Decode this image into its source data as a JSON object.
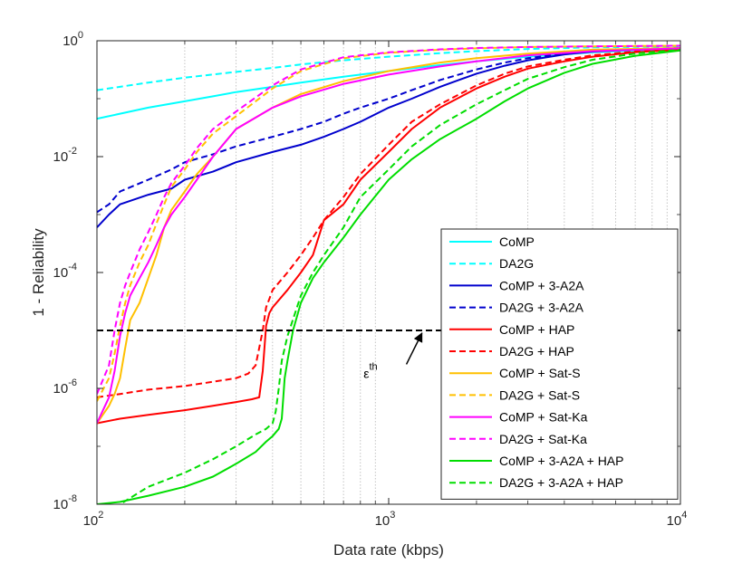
{
  "chart_data": {
    "type": "line",
    "title": "",
    "xlabel": "Data rate (kbps)",
    "ylabel": "1 - Reliability",
    "x_scale": "log",
    "y_scale": "log",
    "xlim": [
      100,
      10000
    ],
    "ylim": [
      1e-08,
      1
    ],
    "grid": "x-minor-dotted",
    "legend_position": "right-center",
    "x_ticks": [
      {
        "value": 100,
        "base": "10",
        "exp": "2"
      },
      {
        "value": 1000,
        "base": "10",
        "exp": "3"
      },
      {
        "value": 10000,
        "base": "10",
        "exp": "4"
      }
    ],
    "y_ticks": [
      {
        "value": 1e-08,
        "base": "10",
        "exp": "-8"
      },
      {
        "value": 1e-06,
        "base": "10",
        "exp": "-6"
      },
      {
        "value": 0.0001,
        "base": "10",
        "exp": "-4"
      },
      {
        "value": 0.01,
        "base": "10",
        "exp": "-2"
      },
      {
        "value": 1,
        "base": "10",
        "exp": "0"
      }
    ],
    "annotation": {
      "threshold_value": 1e-05,
      "threshold_color": "#000000",
      "label_base": "ε",
      "label_sup": "th",
      "label_at": [
        820,
        2.5e-06
      ],
      "arrow_from": [
        1150,
        2.6e-06
      ],
      "arrow_to": [
        1300,
        1e-05
      ]
    },
    "series": [
      {
        "name": "CoMP",
        "color": "#00FFFF",
        "dash": "solid",
        "x": [
          100,
          120,
          150,
          200,
          250,
          300,
          400,
          500,
          700,
          1000,
          1500,
          2000,
          3000,
          5000,
          7000,
          10000
        ],
        "y": [
          0.045,
          0.055,
          0.07,
          0.09,
          0.11,
          0.13,
          0.16,
          0.19,
          0.24,
          0.3,
          0.38,
          0.44,
          0.53,
          0.63,
          0.68,
          0.72
        ]
      },
      {
        "name": "DA2G",
        "color": "#00FFFF",
        "dash": "dashed",
        "x": [
          100,
          120,
          150,
          200,
          300,
          400,
          500,
          700,
          1000,
          1500,
          2000,
          3000,
          5000,
          10000
        ],
        "y": [
          0.14,
          0.16,
          0.19,
          0.23,
          0.29,
          0.34,
          0.39,
          0.46,
          0.53,
          0.61,
          0.66,
          0.72,
          0.77,
          0.8
        ]
      },
      {
        "name": "CoMP + 3-A2A",
        "color": "#0000CD",
        "dash": "solid",
        "x": [
          100,
          110,
          120,
          150,
          180,
          200,
          250,
          300,
          400,
          500,
          600,
          700,
          800,
          1000,
          1200,
          1500,
          2000,
          2500,
          3000,
          4000,
          5000,
          7000,
          10000
        ],
        "y": [
          0.0006,
          0.001,
          0.0015,
          0.0022,
          0.0028,
          0.004,
          0.0055,
          0.008,
          0.012,
          0.016,
          0.022,
          0.03,
          0.04,
          0.07,
          0.1,
          0.16,
          0.27,
          0.37,
          0.46,
          0.58,
          0.65,
          0.7,
          0.74
        ]
      },
      {
        "name": "DA2G + 3-A2A",
        "color": "#0000CD",
        "dash": "dashed",
        "x": [
          100,
          110,
          120,
          150,
          180,
          200,
          250,
          300,
          400,
          500,
          600,
          700,
          800,
          1000,
          1200,
          1500,
          2000,
          2500,
          3000,
          4000,
          5000,
          7000,
          10000
        ],
        "y": [
          0.0011,
          0.0015,
          0.0025,
          0.004,
          0.006,
          0.008,
          0.011,
          0.015,
          0.022,
          0.03,
          0.04,
          0.055,
          0.07,
          0.1,
          0.14,
          0.21,
          0.32,
          0.42,
          0.5,
          0.6,
          0.66,
          0.71,
          0.75
        ]
      },
      {
        "name": "CoMP + HAP",
        "color": "#FF0000",
        "dash": "solid",
        "x": [
          100,
          120,
          150,
          200,
          250,
          300,
          340,
          360,
          370,
          380,
          390,
          400,
          450,
          500,
          550,
          600,
          700,
          800,
          1000,
          1200,
          1500,
          2000,
          2500,
          3000,
          4000,
          5000,
          7000,
          10000
        ],
        "y": [
          2.5e-07,
          3e-07,
          3.5e-07,
          4.2e-07,
          5e-07,
          5.8e-07,
          6.5e-07,
          7e-07,
          2e-06,
          1.2e-05,
          2e-05,
          2.5e-05,
          5e-05,
          0.0001,
          0.0002,
          0.0008,
          0.0015,
          0.004,
          0.012,
          0.03,
          0.07,
          0.15,
          0.24,
          0.33,
          0.44,
          0.53,
          0.63,
          0.7
        ]
      },
      {
        "name": "DA2G + HAP",
        "color": "#FF0000",
        "dash": "dashed",
        "x": [
          100,
          120,
          150,
          200,
          250,
          300,
          330,
          350,
          360,
          370,
          380,
          390,
          400,
          450,
          500,
          550,
          600,
          700,
          800,
          1000,
          1200,
          1500,
          2000,
          2500,
          3000,
          4000,
          5000,
          7000,
          10000
        ],
        "y": [
          7e-07,
          8e-07,
          9.5e-07,
          1.1e-06,
          1.3e-06,
          1.5e-06,
          1.8e-06,
          2.5e-06,
          5e-06,
          1e-05,
          2.5e-05,
          3.5e-05,
          5e-05,
          0.0001,
          0.0002,
          0.0004,
          0.0008,
          0.002,
          0.005,
          0.016,
          0.04,
          0.08,
          0.17,
          0.27,
          0.36,
          0.47,
          0.56,
          0.65,
          0.72
        ]
      },
      {
        "name": "CoMP + Sat-S",
        "color": "#FFC000",
        "dash": "solid",
        "x": [
          100,
          110,
          115,
          120,
          125,
          130,
          140,
          150,
          160,
          170,
          180,
          200,
          220,
          250,
          300,
          400,
          500,
          700,
          1000,
          1500,
          2000,
          3000,
          5000,
          10000
        ],
        "y": [
          2.5e-07,
          5e-07,
          8e-07,
          1.5e-06,
          5e-06,
          1.5e-05,
          3e-05,
          8e-05,
          0.0002,
          0.0006,
          0.0012,
          0.0025,
          0.005,
          0.01,
          0.03,
          0.07,
          0.12,
          0.2,
          0.3,
          0.42,
          0.5,
          0.6,
          0.7,
          0.75
        ]
      },
      {
        "name": "DA2G + Sat-S",
        "color": "#FFC000",
        "dash": "dashed",
        "x": [
          100,
          110,
          115,
          120,
          125,
          130,
          140,
          150,
          160,
          170,
          180,
          200,
          220,
          250,
          300,
          400,
          500,
          700,
          1000,
          1500,
          2000,
          3000,
          5000,
          10000
        ],
        "y": [
          6e-07,
          1.5e-06,
          4e-06,
          1.2e-05,
          3e-05,
          6e-05,
          0.00015,
          0.0003,
          0.0007,
          0.0015,
          0.003,
          0.006,
          0.012,
          0.025,
          0.05,
          0.15,
          0.3,
          0.5,
          0.62,
          0.7,
          0.74,
          0.78,
          0.8,
          0.82
        ]
      },
      {
        "name": "CoMP + Sat-Ka",
        "color": "#FF00FF",
        "dash": "solid",
        "x": [
          100,
          110,
          115,
          120,
          125,
          130,
          140,
          150,
          160,
          170,
          180,
          200,
          220,
          250,
          300,
          400,
          500,
          700,
          1000,
          1500,
          2000,
          3000,
          5000,
          10000
        ],
        "y": [
          2.5e-07,
          7e-07,
          2e-06,
          8e-06,
          2e-05,
          4e-05,
          8e-05,
          0.00015,
          0.0003,
          0.0006,
          0.001,
          0.002,
          0.004,
          0.01,
          0.03,
          0.07,
          0.11,
          0.18,
          0.26,
          0.36,
          0.44,
          0.56,
          0.66,
          0.74
        ]
      },
      {
        "name": "DA2G + Sat-Ka",
        "color": "#FF00FF",
        "dash": "dashed",
        "x": [
          100,
          110,
          115,
          120,
          125,
          130,
          140,
          150,
          160,
          170,
          180,
          200,
          220,
          250,
          300,
          400,
          500,
          700,
          1000,
          1500,
          2000,
          3000,
          5000,
          10000
        ],
        "y": [
          8e-07,
          2.5e-06,
          1e-05,
          3e-05,
          6e-05,
          0.0001,
          0.00025,
          0.0005,
          0.001,
          0.002,
          0.0035,
          0.007,
          0.014,
          0.03,
          0.06,
          0.17,
          0.32,
          0.52,
          0.63,
          0.71,
          0.75,
          0.78,
          0.8,
          0.82
        ]
      },
      {
        "name": "CoMP + 3-A2A + HAP",
        "color": "#00DD00",
        "dash": "solid",
        "x": [
          100,
          120,
          150,
          200,
          250,
          300,
          350,
          380,
          400,
          420,
          430,
          440,
          450,
          470,
          500,
          550,
          600,
          700,
          800,
          1000,
          1200,
          1500,
          2000,
          2500,
          3000,
          4000,
          5000,
          7000,
          10000
        ],
        "y": [
          1e-08,
          1.1e-08,
          1.4e-08,
          2e-08,
          3e-08,
          5e-08,
          8e-08,
          1.2e-07,
          1.5e-07,
          2e-07,
          3e-07,
          1.5e-06,
          3e-06,
          1e-05,
          3e-05,
          8e-05,
          0.00015,
          0.0004,
          0.001,
          0.004,
          0.009,
          0.02,
          0.045,
          0.09,
          0.15,
          0.28,
          0.4,
          0.55,
          0.68
        ]
      },
      {
        "name": "DA2G + 3-A2A + HAP",
        "color": "#00DD00",
        "dash": "dashed",
        "x": [
          100,
          110,
          120,
          150,
          200,
          250,
          300,
          350,
          380,
          400,
          410,
          420,
          430,
          450,
          500,
          550,
          600,
          700,
          800,
          1000,
          1200,
          1500,
          2000,
          2500,
          3000,
          4000,
          5000,
          7000,
          10000
        ],
        "y": [
          6e-09,
          8e-09,
          1e-08,
          2e-08,
          3.5e-08,
          6e-08,
          1e-07,
          1.6e-07,
          2e-07,
          2.5e-07,
          4e-07,
          1e-06,
          3e-06,
          8e-06,
          4e-05,
          0.0001,
          0.0002,
          0.0006,
          0.002,
          0.006,
          0.015,
          0.035,
          0.08,
          0.14,
          0.22,
          0.35,
          0.47,
          0.6,
          0.7
        ]
      }
    ]
  }
}
